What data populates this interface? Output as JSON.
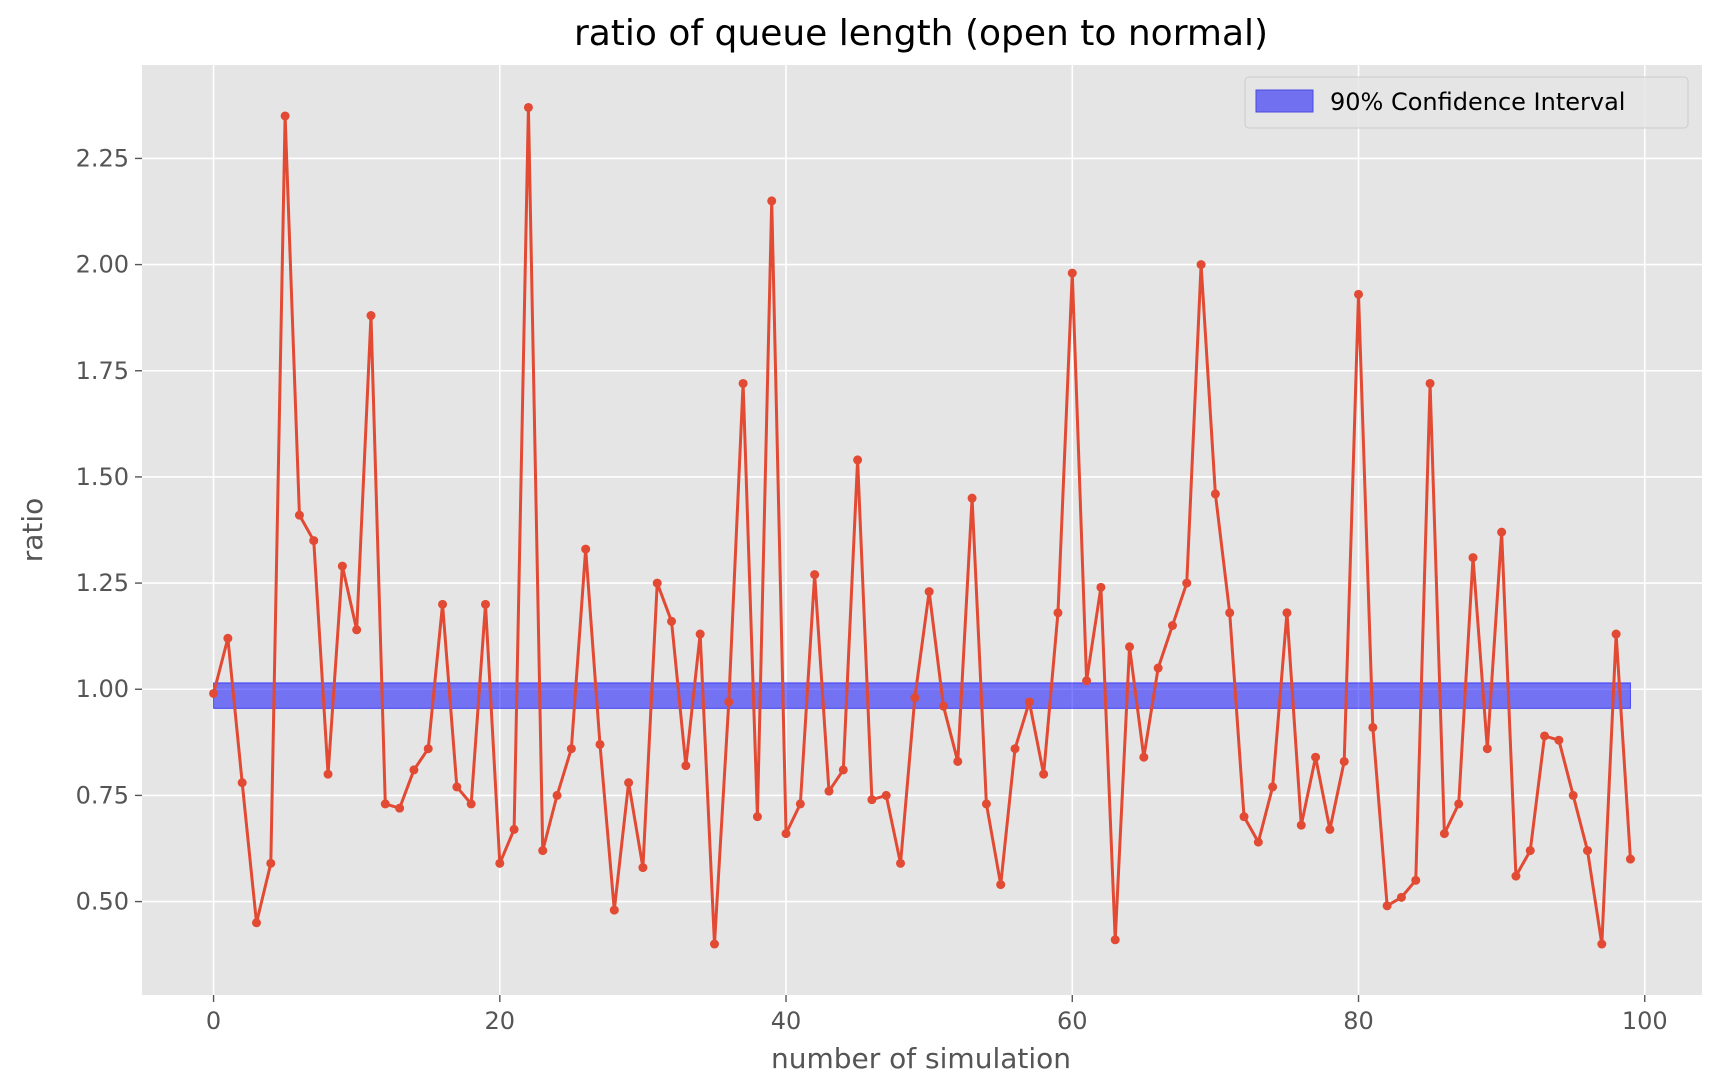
{
  "chart_data": {
    "type": "line",
    "title": "ratio of queue length (open to normal)",
    "xlabel": "number of simulation",
    "ylabel": "ratio",
    "xlim": [
      -5,
      104
    ],
    "ylim": [
      0.28,
      2.47
    ],
    "xticks": [
      0,
      20,
      40,
      60,
      80,
      100
    ],
    "yticks": [
      0.5,
      0.75,
      1.0,
      1.25,
      1.5,
      1.75,
      2.0,
      2.25
    ],
    "ytick_labels": [
      "0.50",
      "0.75",
      "1.00",
      "1.25",
      "1.50",
      "1.75",
      "2.00",
      "2.25"
    ],
    "grid": true,
    "legend_position": "top-right",
    "series": [
      {
        "color": "#e24a33",
        "x": [
          0,
          1,
          2,
          3,
          4,
          5,
          6,
          7,
          8,
          9,
          10,
          11,
          12,
          13,
          14,
          15,
          16,
          17,
          18,
          19,
          20,
          21,
          22,
          23,
          24,
          25,
          26,
          27,
          28,
          29,
          30,
          31,
          32,
          33,
          34,
          35,
          36,
          37,
          38,
          39,
          40,
          41,
          42,
          43,
          44,
          45,
          46,
          47,
          48,
          49,
          50,
          51,
          52,
          53,
          54,
          55,
          56,
          57,
          58,
          59,
          60,
          61,
          62,
          63,
          64,
          65,
          66,
          67,
          68,
          69,
          70,
          71,
          72,
          73,
          74,
          75,
          76,
          77,
          78,
          79,
          80,
          81,
          82,
          83,
          84,
          85,
          86,
          87,
          88,
          89,
          90,
          91,
          92,
          93,
          94,
          95,
          96,
          97,
          98,
          99
        ],
        "y": [
          0.99,
          1.12,
          0.78,
          0.45,
          0.59,
          2.35,
          1.41,
          1.35,
          0.8,
          1.29,
          1.14,
          1.88,
          0.73,
          0.72,
          0.81,
          0.86,
          1.2,
          0.77,
          0.73,
          1.2,
          0.59,
          0.67,
          2.37,
          0.62,
          0.75,
          0.86,
          1.33,
          0.87,
          0.48,
          0.78,
          0.58,
          1.25,
          1.16,
          0.82,
          1.13,
          0.4,
          0.97,
          1.72,
          0.7,
          2.15,
          0.66,
          0.73,
          1.27,
          0.76,
          0.81,
          1.54,
          0.74,
          0.75,
          0.59,
          0.98,
          1.23,
          0.96,
          0.83,
          1.45,
          0.73,
          0.54,
          0.86,
          0.97,
          0.8,
          1.18,
          1.98,
          1.02,
          1.24,
          0.41,
          1.1,
          0.84,
          1.05,
          1.15,
          1.25,
          2.0,
          1.46,
          1.18,
          0.7,
          0.64,
          0.77,
          1.18,
          0.68,
          0.84,
          0.67,
          0.83,
          1.93,
          0.91,
          0.49,
          0.51,
          0.55,
          1.72,
          0.66,
          0.73,
          1.31,
          0.86,
          1.37,
          0.56,
          0.62,
          0.89,
          0.88,
          0.75,
          0.62,
          0.4,
          1.13,
          0.6
        ]
      }
    ],
    "confidence_interval": {
      "label": "90% Confidence Interval",
      "x_range": [
        0,
        99
      ],
      "y_range": [
        0.955,
        1.015
      ],
      "color": "#0000ff",
      "alpha": 0.5
    }
  }
}
